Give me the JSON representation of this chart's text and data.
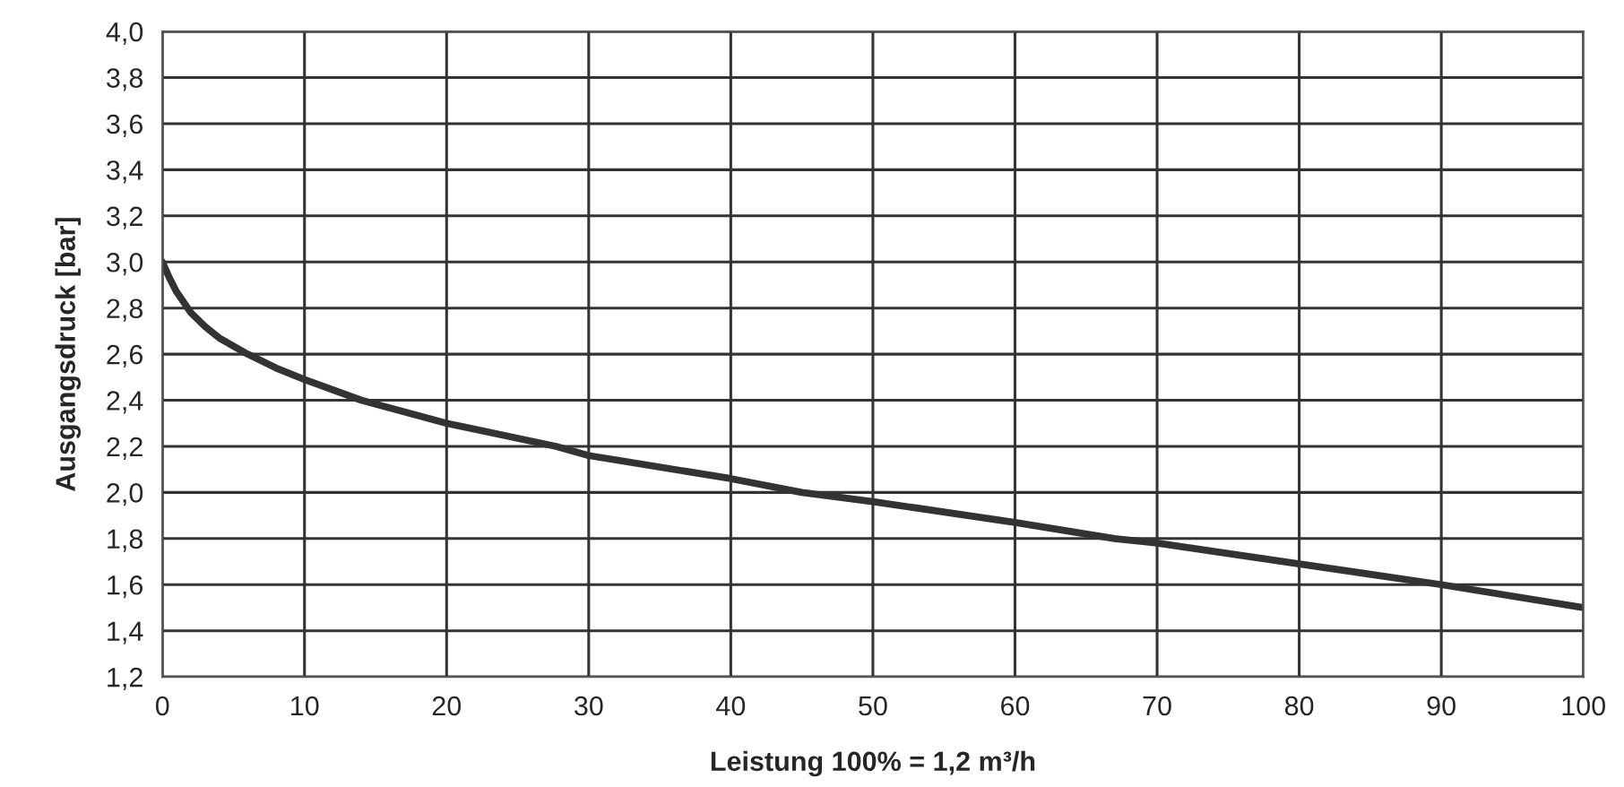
{
  "chart_data": {
    "type": "line",
    "xlabel": "Leistung 100% = 1,2 m³/h",
    "ylabel": "Ausgangsdruck [bar]",
    "x": [
      0,
      0.5,
      1,
      2,
      3,
      4,
      6,
      8,
      10,
      14,
      20,
      27.7,
      30,
      40,
      45,
      50,
      60,
      67,
      70,
      80,
      90,
      100
    ],
    "series": [
      {
        "color": "#333333",
        "values": [
          3.0,
          2.93,
          2.87,
          2.78,
          2.72,
          2.67,
          2.6,
          2.54,
          2.49,
          2.4,
          2.3,
          2.2,
          2.16,
          2.06,
          2.0,
          1.96,
          1.87,
          1.8,
          1.78,
          1.69,
          1.6,
          1.5
        ]
      }
    ],
    "xlim": [
      0,
      100
    ],
    "xticks": [
      0,
      10,
      20,
      30,
      40,
      50,
      60,
      70,
      80,
      90,
      100
    ],
    "ylim": [
      1.2,
      4.0
    ],
    "yticks": [
      {
        "value": 1.2,
        "label": "1,2"
      },
      {
        "value": 1.4,
        "label": "1,4"
      },
      {
        "value": 1.6,
        "label": "1,6"
      },
      {
        "value": 1.8,
        "label": "1,8"
      },
      {
        "value": 2.0,
        "label": "2,0"
      },
      {
        "value": 2.2,
        "label": "2,2"
      },
      {
        "value": 2.4,
        "label": "2,4"
      },
      {
        "value": 2.6,
        "label": "2,6"
      },
      {
        "value": 2.8,
        "label": "2,8"
      },
      {
        "value": 3.0,
        "label": "3,0"
      },
      {
        "value": 3.2,
        "label": "3,2"
      },
      {
        "value": 3.4,
        "label": "3,4"
      },
      {
        "value": 3.6,
        "label": "3,6"
      },
      {
        "value": 3.8,
        "label": "3,8"
      },
      {
        "value": 4.0,
        "label": "4,0"
      }
    ],
    "grid": true,
    "line_style": "solid",
    "marker": "none"
  }
}
